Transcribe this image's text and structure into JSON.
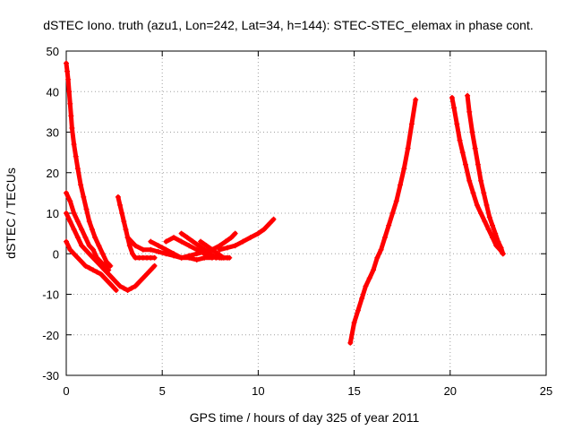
{
  "chart_data": {
    "type": "scatter",
    "title": "dSTEC Iono. truth (azu1, Lon=242, Lat=34, h=144): STEC-STEC_elemax in phase cont.",
    "xlabel": "GPS time / hours of day 325 of year 2011",
    "ylabel": "dSTEC  / TECUs",
    "xlim": [
      0,
      25
    ],
    "ylim": [
      -30,
      50
    ],
    "xticks": [
      0,
      5,
      10,
      15,
      20,
      25
    ],
    "yticks": [
      -30,
      -20,
      -10,
      0,
      10,
      20,
      30,
      40,
      50
    ],
    "grid": true,
    "marker": "+",
    "color": "#ff0000",
    "series": [
      {
        "points": [
          [
            0.0,
            47
          ],
          [
            0.05,
            45
          ],
          [
            0.1,
            43
          ],
          [
            0.15,
            40
          ],
          [
            0.2,
            37
          ],
          [
            0.25,
            34
          ],
          [
            0.3,
            31
          ],
          [
            0.4,
            27
          ],
          [
            0.5,
            24
          ],
          [
            0.6,
            21
          ],
          [
            0.75,
            17
          ],
          [
            0.9,
            14
          ],
          [
            1.05,
            11
          ],
          [
            1.2,
            8
          ],
          [
            1.35,
            6
          ],
          [
            1.5,
            4
          ],
          [
            1.7,
            2
          ],
          [
            1.9,
            0
          ],
          [
            2.1,
            -2
          ],
          [
            2.3,
            -3
          ]
        ]
      },
      {
        "points": [
          [
            0.0,
            15
          ],
          [
            0.2,
            13
          ],
          [
            0.4,
            10
          ],
          [
            0.6,
            8
          ],
          [
            0.8,
            6
          ],
          [
            1.0,
            4
          ],
          [
            1.2,
            2
          ],
          [
            1.4,
            1
          ],
          [
            1.6,
            -1
          ],
          [
            1.8,
            -2
          ],
          [
            2.0,
            -3
          ],
          [
            2.2,
            -4
          ]
        ]
      },
      {
        "points": [
          [
            0.0,
            10
          ],
          [
            0.2,
            8
          ],
          [
            0.4,
            6
          ],
          [
            0.6,
            4
          ],
          [
            0.8,
            2
          ],
          [
            1.0,
            1
          ],
          [
            1.2,
            0
          ],
          [
            1.4,
            -1
          ],
          [
            1.6,
            -2
          ],
          [
            1.8,
            -3
          ],
          [
            2.0,
            -4
          ],
          [
            2.2,
            -5
          ],
          [
            2.4,
            -6
          ],
          [
            2.6,
            -7
          ],
          [
            2.8,
            -8
          ],
          [
            3.0,
            -8.5
          ],
          [
            3.2,
            -9
          ],
          [
            3.4,
            -8.5
          ],
          [
            3.6,
            -8
          ],
          [
            3.8,
            -7
          ],
          [
            4.0,
            -6
          ],
          [
            4.2,
            -5
          ],
          [
            4.4,
            -4
          ],
          [
            4.6,
            -3
          ]
        ]
      },
      {
        "points": [
          [
            0.0,
            3
          ],
          [
            0.2,
            1
          ],
          [
            0.4,
            0
          ],
          [
            0.6,
            -1
          ],
          [
            0.8,
            -2
          ],
          [
            1.0,
            -3
          ],
          [
            1.2,
            -3.5
          ],
          [
            1.4,
            -4
          ],
          [
            1.6,
            -4.5
          ],
          [
            1.8,
            -5
          ],
          [
            2.0,
            -6
          ],
          [
            2.2,
            -7
          ],
          [
            2.4,
            -8
          ],
          [
            2.6,
            -9
          ]
        ]
      },
      {
        "points": [
          [
            2.7,
            14
          ],
          [
            2.8,
            12
          ],
          [
            2.9,
            10
          ],
          [
            3.0,
            8
          ],
          [
            3.1,
            6
          ],
          [
            3.2,
            4
          ],
          [
            3.3,
            2
          ],
          [
            3.45,
            0
          ],
          [
            3.6,
            -1
          ],
          [
            3.8,
            -1
          ],
          [
            4.0,
            -1
          ],
          [
            4.2,
            -1
          ],
          [
            4.4,
            -1
          ],
          [
            4.6,
            -1
          ]
        ]
      },
      {
        "points": [
          [
            3.2,
            4
          ],
          [
            3.6,
            2
          ],
          [
            4.0,
            1
          ],
          [
            4.4,
            1
          ],
          [
            4.8,
            0.5
          ],
          [
            5.2,
            0
          ],
          [
            5.6,
            -0.5
          ],
          [
            6.0,
            -1
          ],
          [
            6.4,
            -0.5
          ],
          [
            6.8,
            0
          ],
          [
            7.2,
            0.5
          ],
          [
            7.6,
            1
          ],
          [
            8.0,
            2
          ],
          [
            8.3,
            3
          ],
          [
            8.6,
            4
          ],
          [
            8.8,
            5
          ]
        ]
      },
      {
        "points": [
          [
            4.4,
            3
          ],
          [
            4.8,
            2
          ],
          [
            5.2,
            1
          ],
          [
            5.6,
            0
          ],
          [
            6.0,
            -1
          ],
          [
            6.4,
            -1
          ],
          [
            6.8,
            -1.5
          ],
          [
            7.2,
            -1
          ],
          [
            7.6,
            -1
          ],
          [
            8.0,
            -0.5
          ]
        ]
      },
      {
        "points": [
          [
            5.2,
            3
          ],
          [
            5.6,
            4
          ],
          [
            6.0,
            3
          ],
          [
            6.4,
            2
          ],
          [
            6.8,
            1
          ],
          [
            7.2,
            0
          ],
          [
            7.6,
            -0.5
          ],
          [
            8.0,
            -1
          ],
          [
            8.4,
            -1
          ]
        ]
      },
      {
        "points": [
          [
            6.0,
            5
          ],
          [
            6.3,
            4
          ],
          [
            6.6,
            3
          ],
          [
            6.9,
            2
          ],
          [
            7.2,
            1
          ],
          [
            7.5,
            0
          ],
          [
            7.8,
            -1
          ],
          [
            8.1,
            -1
          ]
        ]
      },
      {
        "points": [
          [
            7.0,
            3
          ],
          [
            7.3,
            2
          ],
          [
            7.6,
            1
          ],
          [
            7.9,
            0
          ],
          [
            8.2,
            -1
          ],
          [
            8.5,
            -1
          ]
        ]
      },
      {
        "points": [
          [
            8.0,
            1
          ],
          [
            8.4,
            1.5
          ],
          [
            8.8,
            2
          ],
          [
            9.2,
            3
          ],
          [
            9.6,
            4
          ],
          [
            10.0,
            5
          ],
          [
            10.3,
            6
          ],
          [
            10.6,
            7.5
          ],
          [
            10.8,
            8.5
          ]
        ]
      },
      {
        "points": [
          [
            14.8,
            -22
          ],
          [
            15.0,
            -17
          ],
          [
            15.2,
            -14
          ],
          [
            15.4,
            -11
          ],
          [
            15.6,
            -8
          ],
          [
            15.8,
            -6
          ],
          [
            16.0,
            -4
          ],
          [
            16.2,
            -1
          ],
          [
            16.4,
            1
          ],
          [
            16.6,
            4
          ],
          [
            16.8,
            7
          ],
          [
            17.0,
            10
          ],
          [
            17.2,
            13
          ],
          [
            17.4,
            17
          ],
          [
            17.6,
            21
          ],
          [
            17.8,
            26
          ],
          [
            18.0,
            32
          ],
          [
            18.2,
            38
          ]
        ]
      },
      {
        "points": [
          [
            20.1,
            38.5
          ],
          [
            20.2,
            36
          ],
          [
            20.35,
            32
          ],
          [
            20.5,
            28
          ],
          [
            20.65,
            25
          ],
          [
            20.8,
            22
          ],
          [
            21.0,
            18
          ],
          [
            21.2,
            15
          ],
          [
            21.4,
            12
          ],
          [
            21.6,
            10
          ],
          [
            21.8,
            8
          ],
          [
            22.0,
            6
          ],
          [
            22.2,
            4
          ],
          [
            22.4,
            2
          ],
          [
            22.6,
            1
          ],
          [
            22.75,
            0
          ]
        ]
      },
      {
        "points": [
          [
            20.9,
            39
          ],
          [
            21.0,
            35
          ],
          [
            21.15,
            30
          ],
          [
            21.3,
            26
          ],
          [
            21.45,
            22
          ],
          [
            21.6,
            18
          ],
          [
            21.75,
            15
          ],
          [
            21.9,
            12
          ],
          [
            22.05,
            9
          ],
          [
            22.2,
            7
          ],
          [
            22.35,
            5
          ],
          [
            22.5,
            3
          ],
          [
            22.65,
            1.5
          ],
          [
            22.75,
            0
          ]
        ]
      }
    ]
  }
}
